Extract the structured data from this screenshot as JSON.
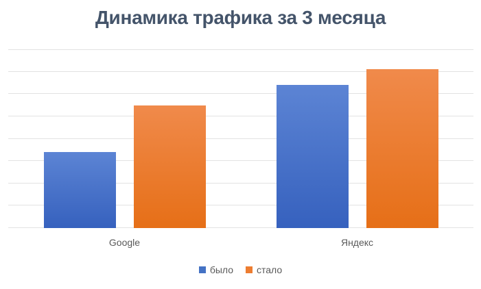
{
  "colors": {
    "title": "#44546A",
    "axis_label": "#595959",
    "gridline": "#E2E2E2",
    "background": "#FFFFFF"
  },
  "chart_data": {
    "type": "bar",
    "title": "Динамика трафика за 3 месяца",
    "categories": [
      "Google",
      "Яндекс"
    ],
    "series": [
      {
        "name": "было",
        "values": [
          3.4,
          6.4
        ],
        "color": "#4472C4",
        "gradient_top": "#5C84D4",
        "gradient_bottom": "#3661BE"
      },
      {
        "name": "стало",
        "values": [
          5.5,
          7.1
        ],
        "color": "#ED7D31",
        "gradient_top": "#F08A4B",
        "gradient_bottom": "#E66F17"
      }
    ],
    "xlabel": "",
    "ylabel": "",
    "ylim": [
      0,
      8
    ],
    "gridline_step": 1,
    "y_axis_labels_visible": false,
    "grid": true,
    "legend_position": "bottom"
  }
}
